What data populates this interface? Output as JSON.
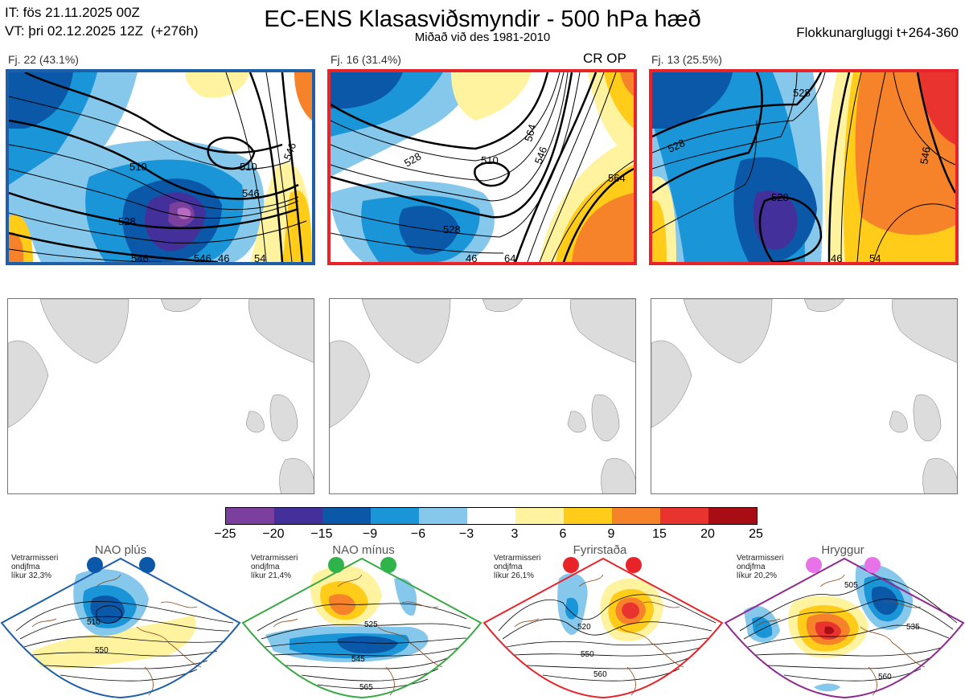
{
  "header": {
    "init_time": "IT: fös 21.11.2025 00Z",
    "valid_time": "VT: þri 02.12.2025 12Z  (+276h)",
    "title": "EC-ENS Klasasviðsmyndir - 500 hPa hæð",
    "subtitle": "Miðað við des 1981-2010",
    "window": "Flokkunargluggi t+264-360"
  },
  "clusters": [
    {
      "label": "Fj. 22 (43.1%)",
      "border_color": "#1f5fa8",
      "contours": [
        "510",
        "510",
        "528",
        "546",
        "546",
        "546",
        "546",
        "54",
        "46"
      ]
    },
    {
      "label": "Fj. 16 (31.4%)",
      "border_color": "#e8232a",
      "tag": "CR OP",
      "contours": [
        "510",
        "528",
        "528",
        "546",
        "564",
        "564",
        "46",
        "64"
      ]
    },
    {
      "label": "Fj. 13 (25.5%)",
      "border_color": "#e8232a",
      "contours": [
        "528",
        "528",
        "528",
        "546",
        "46",
        "54"
      ]
    }
  ],
  "colorbar": {
    "labels": [
      "−25",
      "−20",
      "−15",
      "−9",
      "−6",
      "−3",
      "3",
      "6",
      "9",
      "15",
      "20",
      "25"
    ],
    "colors": [
      "#7b3f9e",
      "#44309a",
      "#0b58a8",
      "#1a95d8",
      "#86c7ec",
      "#ffffff",
      "#fff3a0",
      "#ffcc1a",
      "#f6822a",
      "#e8332e",
      "#a80c14"
    ]
  },
  "regimes": [
    {
      "name": "NAO plús",
      "note": "Vetrarmisseri\nondjfma\nlíkur 32,3%",
      "frame_color": "#1f5fa8",
      "dot_color": "#0b58a8",
      "contours": [
        "510",
        "550"
      ]
    },
    {
      "name": "NAO mínus",
      "note": "Vetrarmisseri\nondjfma\nlíkur 21,4%",
      "frame_color": "#3aa845",
      "dot_color": "#2fb34a",
      "contours": [
        "525",
        "545",
        "565"
      ]
    },
    {
      "name": "Fyrirstaða",
      "note": "Vetrarmisseri\nondjfma\nlíkur 26,1%",
      "frame_color": "#e8232a",
      "dot_color": "#e8232a",
      "contours": [
        "520",
        "550",
        "560"
      ]
    },
    {
      "name": "Hryggur",
      "note": "Vetrarmisseri\nondjfma\nlíkur 20,2%",
      "frame_color": "#8e2a8e",
      "dot_color": "#e872e8",
      "contours": [
        "505",
        "535",
        "560"
      ]
    }
  ]
}
